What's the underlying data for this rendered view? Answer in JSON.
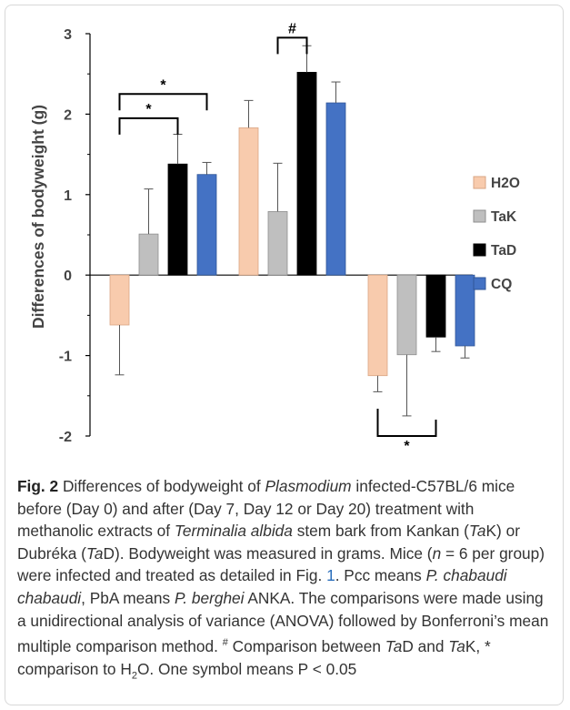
{
  "chart_data": {
    "type": "bar",
    "ylabel": "Differences of bodyweight (g)",
    "ylim": [
      -2,
      3
    ],
    "yticks": [
      3,
      2,
      1,
      0,
      -1,
      -2
    ],
    "legend_position": "right",
    "groups": 3,
    "series": [
      {
        "name": "H2O",
        "color": "#f8cbad",
        "values": [
          -0.62,
          1.83,
          -1.25
        ],
        "errors": [
          0.62,
          0.34,
          0.2
        ]
      },
      {
        "name": "TaK",
        "color": "#bfbfbf",
        "values": [
          0.51,
          0.79,
          -0.99
        ],
        "errors": [
          0.56,
          0.6,
          0.76
        ]
      },
      {
        "name": "TaD",
        "color": "#000000",
        "values": [
          1.38,
          2.52,
          -0.77
        ],
        "errors": [
          0.37,
          0.33,
          0.18
        ]
      },
      {
        "name": "CQ",
        "color": "#4472c4",
        "values": [
          1.25,
          2.14,
          -0.88
        ],
        "errors": [
          0.15,
          0.26,
          0.15
        ]
      }
    ],
    "annotations": [
      {
        "symbol": "*",
        "group": 0,
        "from": 0,
        "to": 2,
        "level": 1.95,
        "side": "top"
      },
      {
        "symbol": "*",
        "group": 0,
        "from": 0,
        "to": 3,
        "level": 2.25,
        "side": "top"
      },
      {
        "symbol": "#",
        "group": 1,
        "from": 1,
        "to": 2,
        "level": 2.95,
        "side": "top"
      },
      {
        "symbol": "*",
        "group": 2,
        "from": 0,
        "to": 2,
        "level": -2.0,
        "side": "bottom"
      }
    ]
  },
  "caption": {
    "fig_label": "Fig. 2",
    "t1": " Differences of bodyweight of ",
    "i1": "Plasmodium",
    "t2": " infected-C57BL/6 mice before (Day 0) and after (Day 7, Day 12 or Day 20) treatment with methanolic extracts of ",
    "i2": "Terminalia albida",
    "t3": " stem bark from Kankan (",
    "i3": "Ta",
    "t4": "K) or Dubréka (",
    "i4": "Ta",
    "t5": "D). Bodyweight was measured in grams. Mice (",
    "i5": "n",
    "t6": " = 6 per group) were infected and treated as detailed in Fig. ",
    "ref": "1",
    "t7": ". Pcc means ",
    "i6": "P. chabaudi chabaudi",
    "t8": ", PbA means ",
    "i7": "P. berghei",
    "t9": " ANKA. The comparisons were made using a unidirectional analysis of variance (ANOVA) followed by Bonferroni’s mean multiple comparison method. ",
    "sup1": "#",
    "t10": " Comparison between ",
    "i8": "Ta",
    "t11": "D and ",
    "i9": "Ta",
    "t12": "K, * comparison to H",
    "sub1": "2",
    "t13": "O. One symbol means P < 0.05"
  }
}
